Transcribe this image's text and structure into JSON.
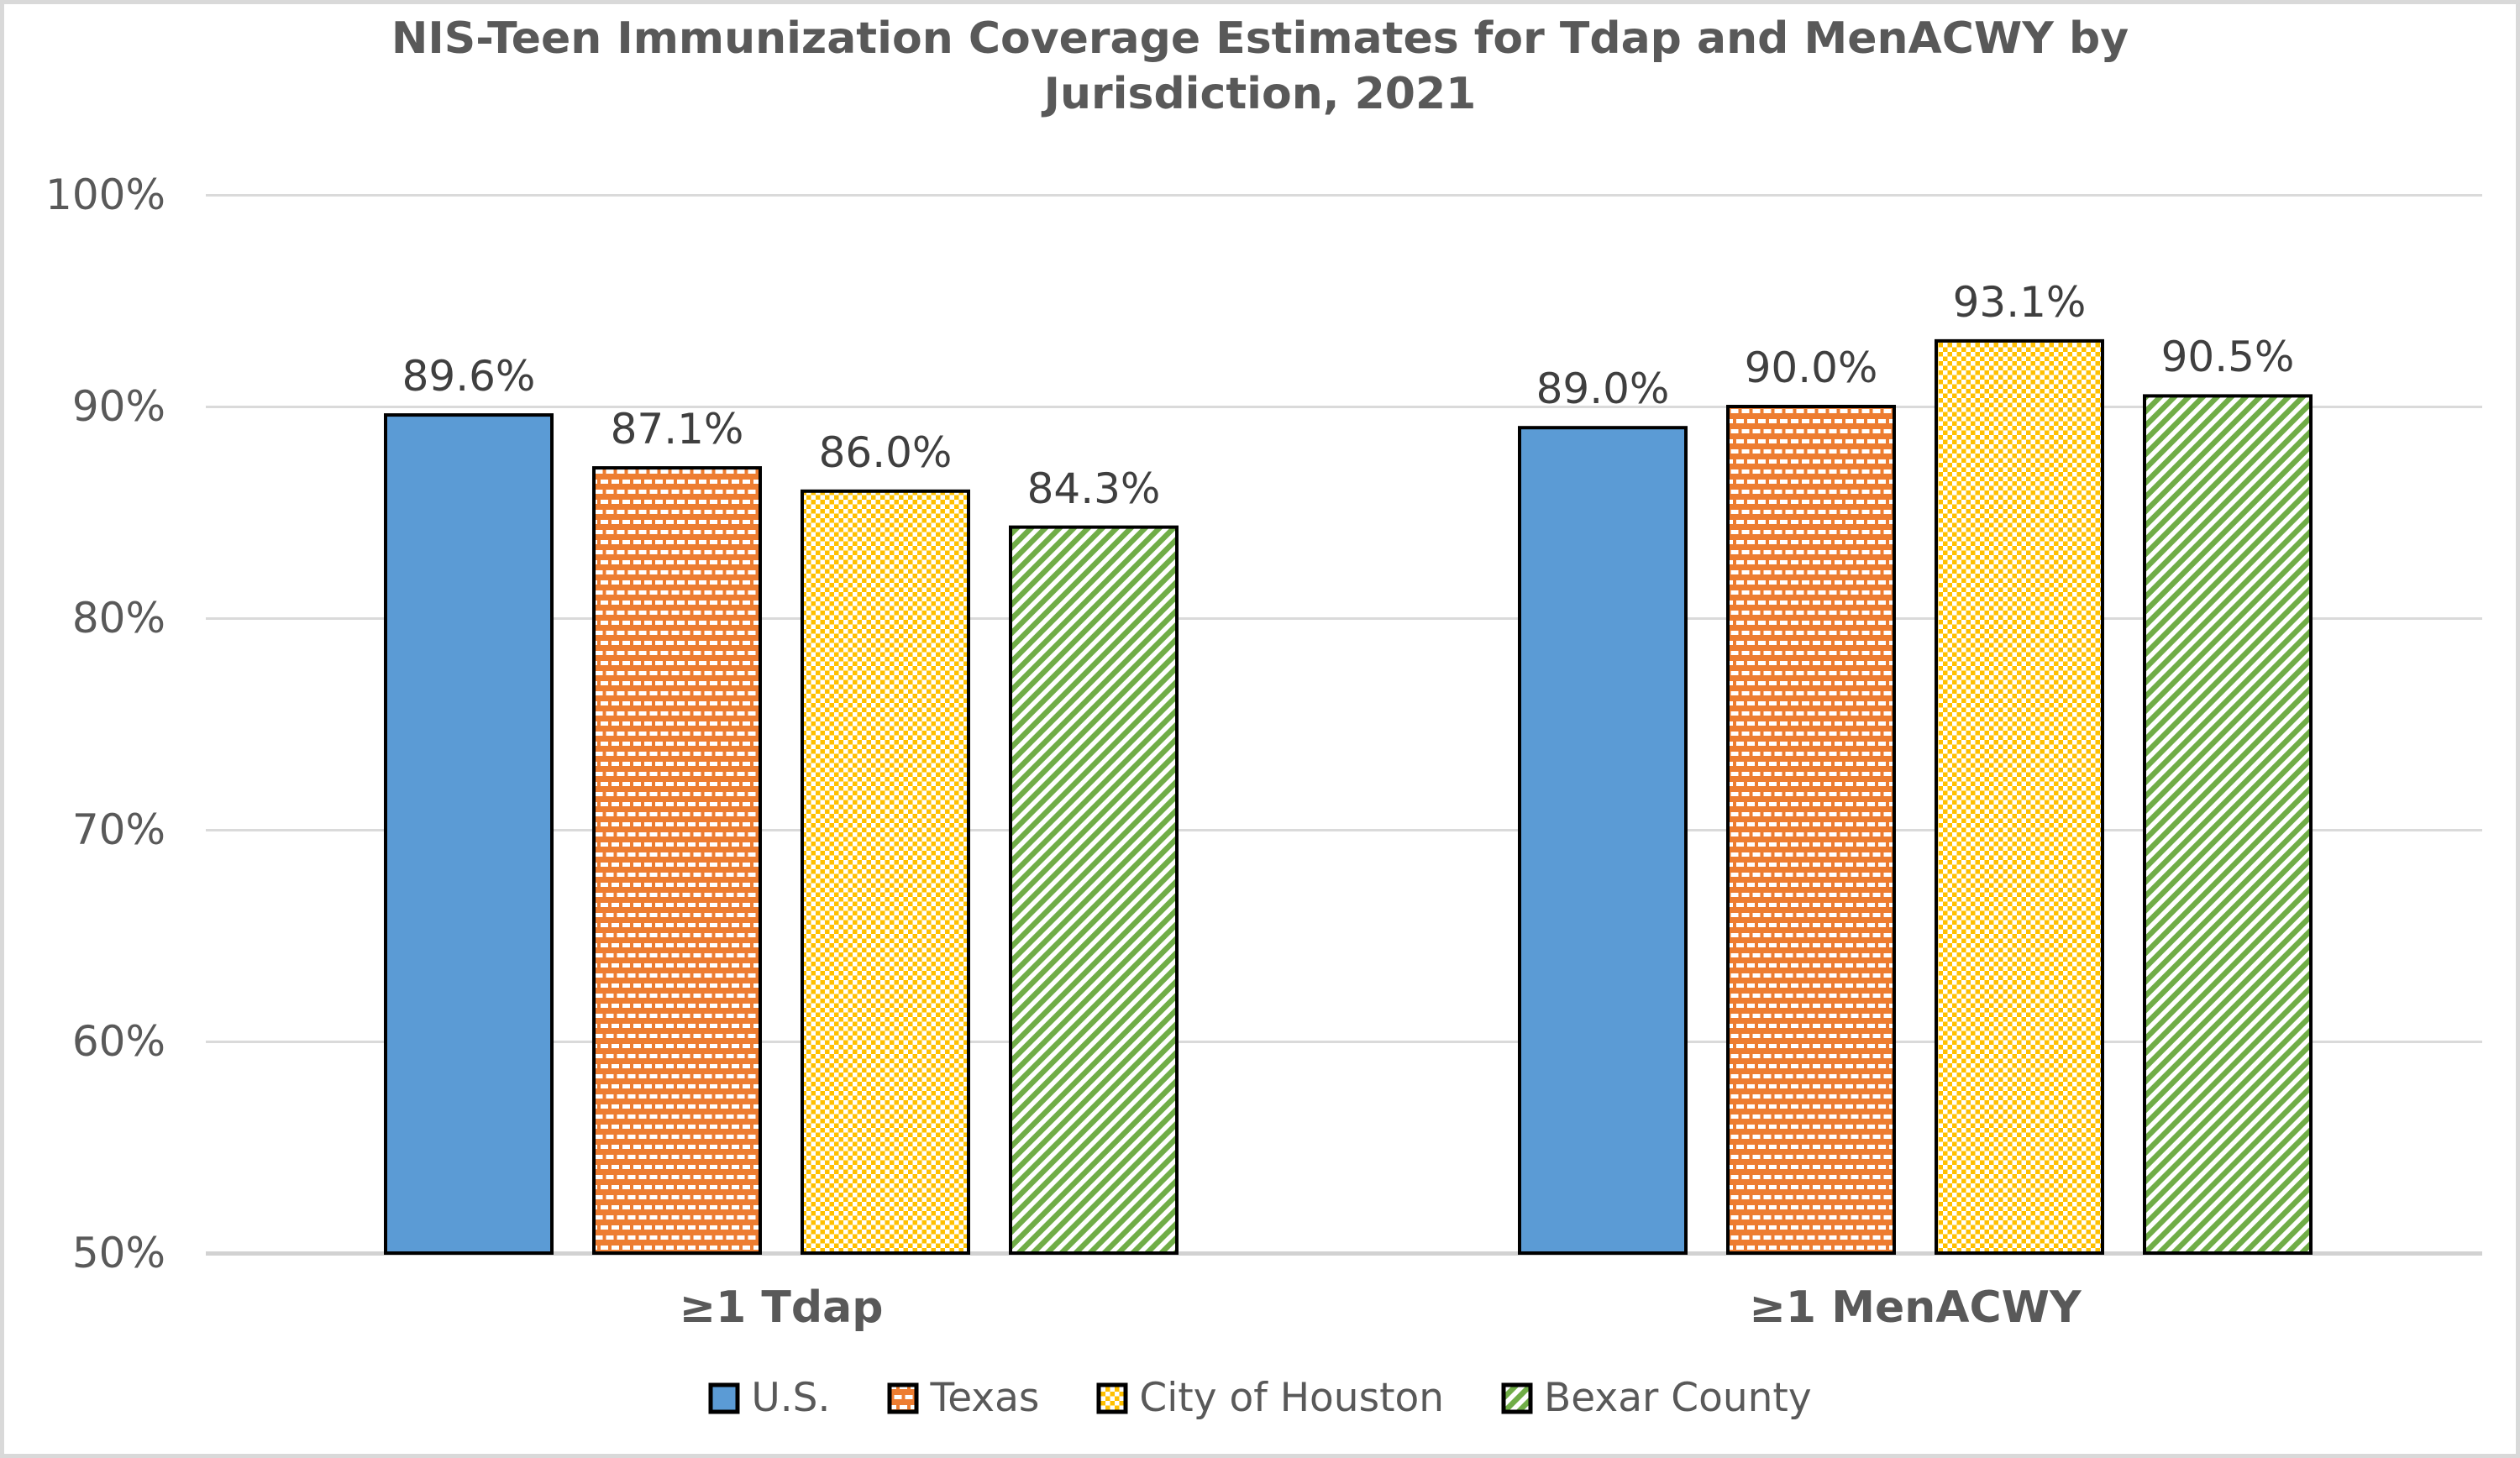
{
  "chart_data": {
    "type": "bar",
    "title": "NIS-Teen Immunization Coverage Estimates for Tdap and MenACWY by Jurisdiction, 2021",
    "categories": [
      "≥1 Tdap",
      "≥1 MenACWY"
    ],
    "series": [
      {
        "name": "U.S.",
        "values": [
          89.6,
          89.0
        ],
        "value_labels": [
          "89.6%",
          "89.0%"
        ],
        "color": "#5B9BD5",
        "pattern": "solid"
      },
      {
        "name": "Texas",
        "values": [
          87.1,
          90.0
        ],
        "value_labels": [
          "87.1%",
          "90.0%"
        ],
        "color": "#ED7D31",
        "pattern": "brick-dash"
      },
      {
        "name": "City of Houston",
        "values": [
          86.0,
          93.1
        ],
        "value_labels": [
          "86.0%",
          "93.1%"
        ],
        "color": "#FFC000",
        "pattern": "checker"
      },
      {
        "name": "Bexar County",
        "values": [
          84.3,
          90.5
        ],
        "value_labels": [
          "84.3%",
          "90.5%"
        ],
        "color": "#70AD47",
        "pattern": "diagonal-stripe"
      }
    ],
    "ylim": [
      50,
      100
    ],
    "yticks": [
      {
        "value": 50,
        "label": "50%"
      },
      {
        "value": 60,
        "label": "60%"
      },
      {
        "value": 70,
        "label": "70%"
      },
      {
        "value": 80,
        "label": "80%"
      },
      {
        "value": 90,
        "label": "90%"
      },
      {
        "value": 100,
        "label": "100%"
      }
    ],
    "grid": true,
    "legend_position": "bottom",
    "styles": {
      "title_color": "#595959",
      "axis_text_color": "#595959",
      "data_label_color": "#3F3F3F",
      "gridline_color": "#DADADA",
      "bar_outline_color": "#000000",
      "frame_color": "#D9D9D9"
    }
  }
}
